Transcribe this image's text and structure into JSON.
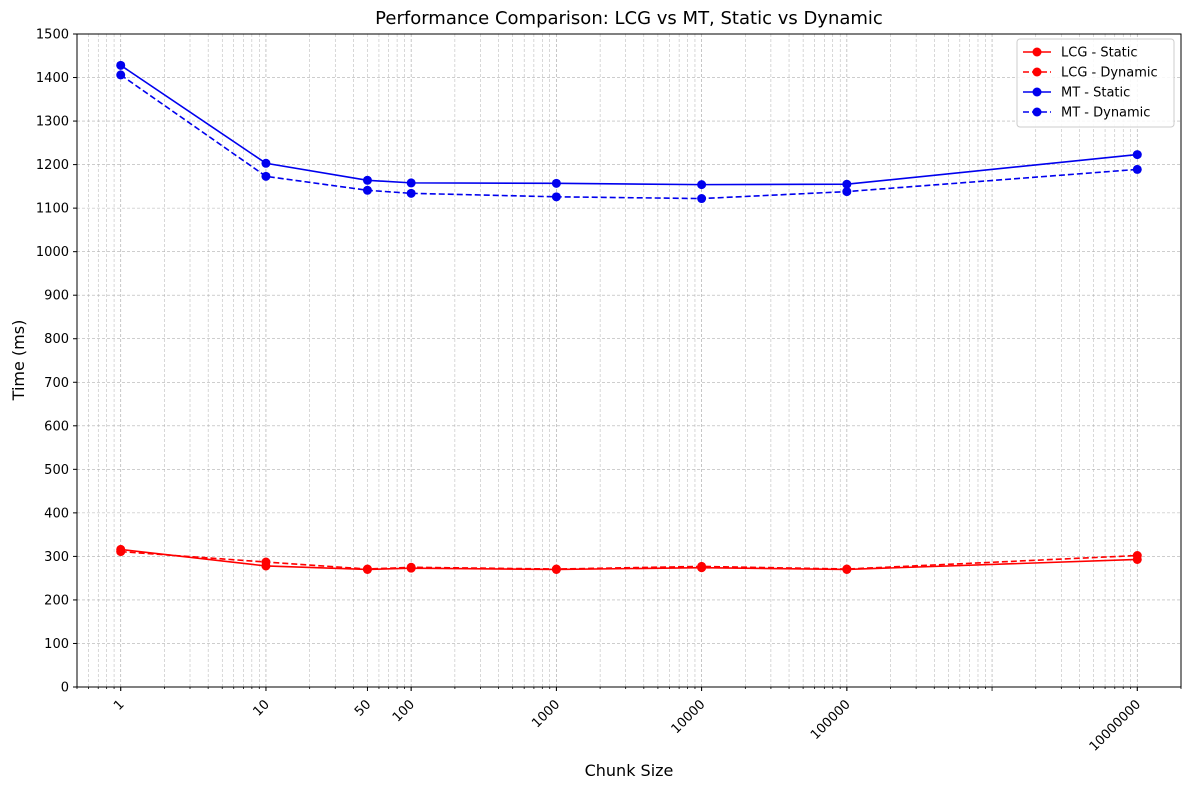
{
  "chart_data": {
    "type": "line",
    "title": "Performance Comparison: LCG vs MT, Static vs Dynamic",
    "xlabel": "Chunk Size",
    "ylabel": "Time (ms)",
    "x_scale": "log",
    "xlim": [
      0.5,
      20000000
    ],
    "ylim": [
      0,
      1500
    ],
    "x": [
      1,
      10,
      50,
      100,
      1000,
      10000,
      100000,
      10000000
    ],
    "x_tick_labels": [
      "1",
      "10",
      "50",
      "100",
      "1000",
      "10000",
      "100000",
      "10000000"
    ],
    "y_ticks": [
      0,
      100,
      200,
      300,
      400,
      500,
      600,
      700,
      800,
      900,
      1000,
      1100,
      1200,
      1300,
      1400,
      1500
    ],
    "grid": true,
    "legend_position": "top-right",
    "series": [
      {
        "name": "LCG - Static",
        "color": "#ff0000",
        "dash": "solid",
        "values": [
          316,
          278,
          270,
          273,
          270,
          274,
          270,
          293
        ]
      },
      {
        "name": "LCG - Dynamic",
        "color": "#ff0000",
        "dash": "dashed",
        "values": [
          311,
          287,
          271,
          275,
          271,
          277,
          271,
          302
        ]
      },
      {
        "name": "MT - Static",
        "color": "#0000ee",
        "dash": "solid",
        "values": [
          1428,
          1203,
          1164,
          1158,
          1157,
          1154,
          1155,
          1223
        ]
      },
      {
        "name": "MT - Dynamic",
        "color": "#0000ee",
        "dash": "dashed",
        "values": [
          1406,
          1173,
          1141,
          1134,
          1126,
          1122,
          1138,
          1189
        ]
      }
    ]
  }
}
